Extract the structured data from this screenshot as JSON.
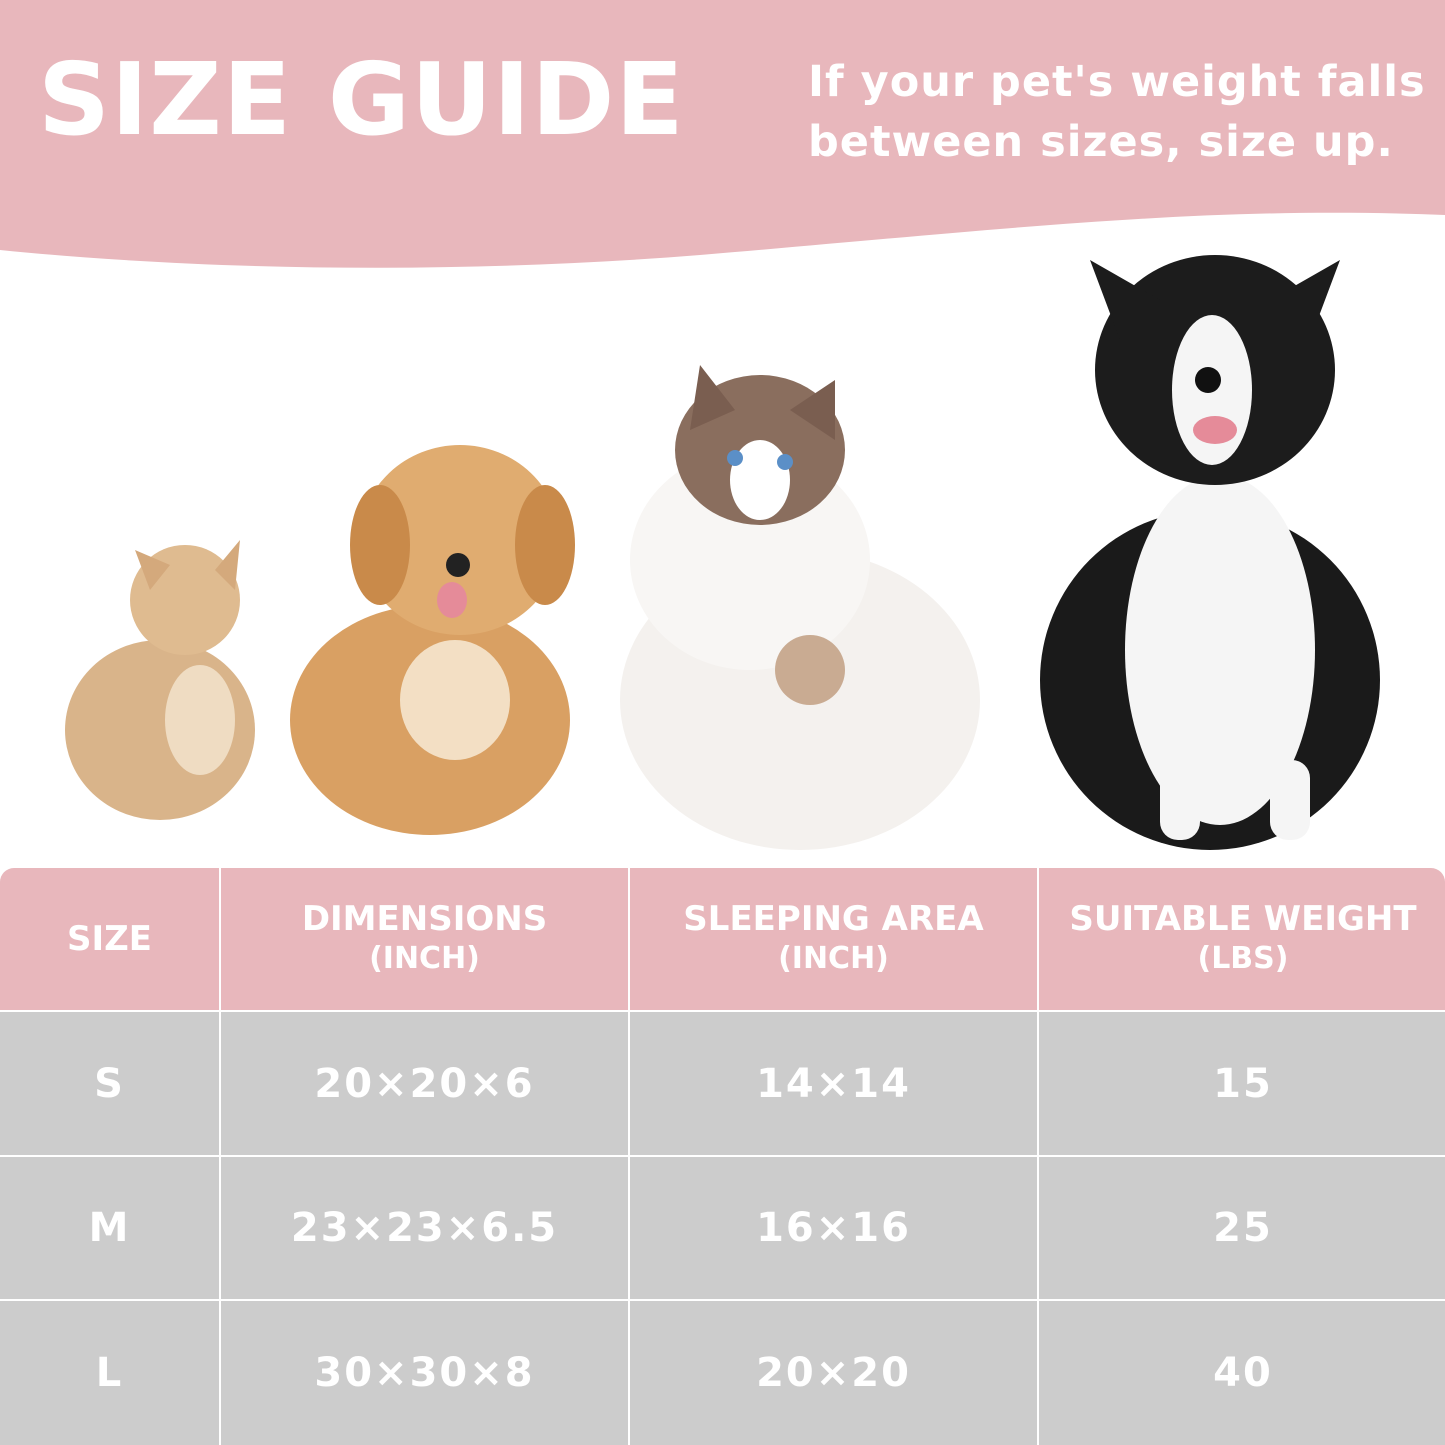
{
  "header": {
    "title": "SIZE GUIDE",
    "subtitle_line1": "If your pet's weight falls",
    "subtitle_line2": "between sizes, size up."
  },
  "colors": {
    "banner": "#e8b7bc",
    "header_row": "#e8b7bc",
    "body_row": "#cccccc",
    "text": "#ffffff"
  },
  "pets": [
    "small-cat",
    "small-dog",
    "medium-cat",
    "large-dog"
  ],
  "table": {
    "columns": [
      {
        "label": "SIZE",
        "unit": ""
      },
      {
        "label": "DIMENSIONS",
        "unit": "(INCH)"
      },
      {
        "label": "SLEEPING AREA",
        "unit": "(INCH)"
      },
      {
        "label": "SUITABLE WEIGHT",
        "unit": "(LBS)"
      }
    ],
    "rows": [
      [
        "S",
        "20×20×6",
        "14×14",
        "15"
      ],
      [
        "M",
        "23×23×6.5",
        "16×16",
        "25"
      ],
      [
        "L",
        "30×30×8",
        "20×20",
        "40"
      ]
    ]
  }
}
